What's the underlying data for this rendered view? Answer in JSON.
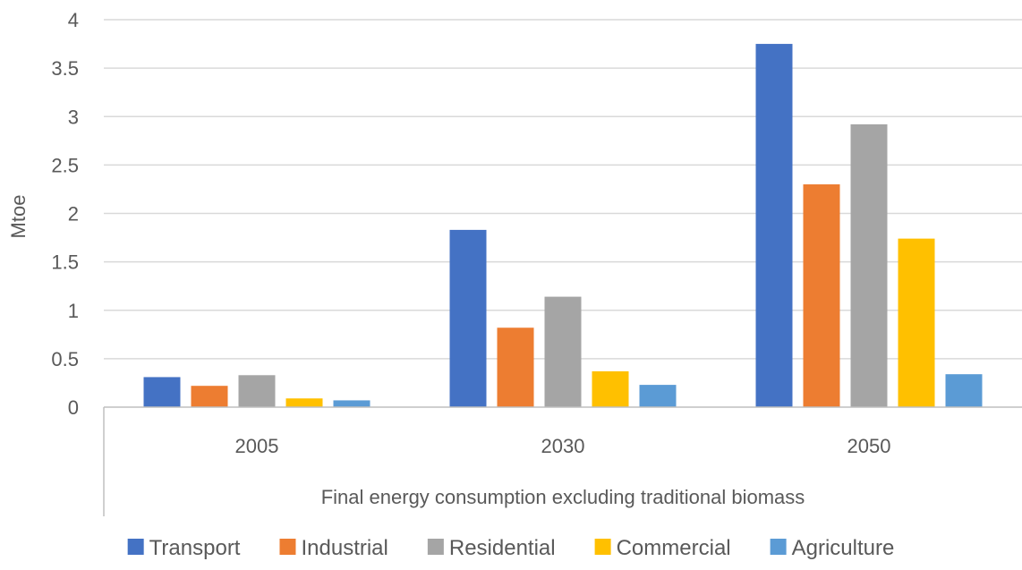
{
  "chart_data": {
    "type": "bar",
    "categories": [
      "2005",
      "2030",
      "2050"
    ],
    "group_label": "Final energy consumption excluding traditional biomass",
    "ylabel": "Mtoe",
    "ylim": [
      0,
      4
    ],
    "yticks": [
      0,
      0.5,
      1,
      1.5,
      2,
      2.5,
      3,
      3.5,
      4
    ],
    "ytick_labels": [
      "0",
      "0.5",
      "1",
      "1.5",
      "2",
      "2.5",
      "3",
      "3.5",
      "4"
    ],
    "grid": true,
    "legend_position": "bottom",
    "series": [
      {
        "name": "Transport",
        "color": "#4472C4",
        "values": [
          0.31,
          1.83,
          3.75
        ]
      },
      {
        "name": "Industrial",
        "color": "#ED7D31",
        "values": [
          0.22,
          0.82,
          2.3
        ]
      },
      {
        "name": "Residential",
        "color": "#A5A5A5",
        "values": [
          0.33,
          1.14,
          2.92
        ]
      },
      {
        "name": "Commercial",
        "color": "#FFC000",
        "values": [
          0.09,
          0.37,
          1.74
        ]
      },
      {
        "name": "Agriculture",
        "color": "#5B9BD5",
        "values": [
          0.07,
          0.23,
          0.34
        ]
      }
    ]
  }
}
